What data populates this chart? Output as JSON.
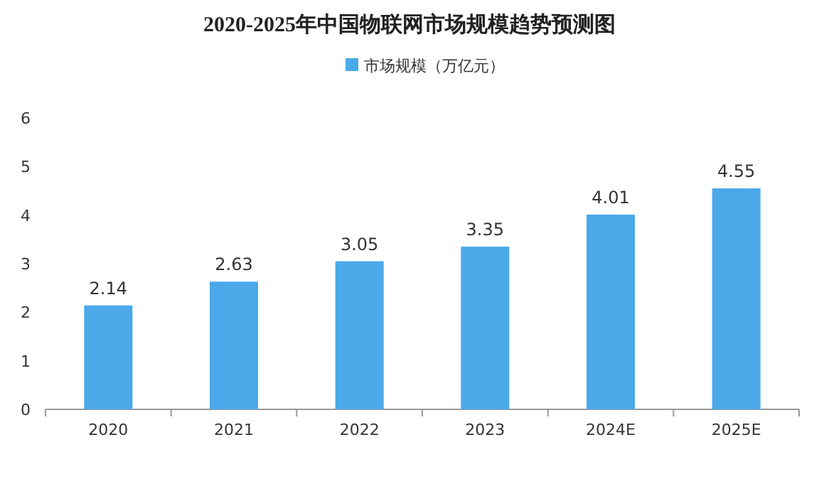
{
  "chart_data": {
    "type": "bar",
    "title": "2020-2025年中国物联网市场规模趋势预测图",
    "categories": [
      "2020",
      "2021",
      "2022",
      "2023",
      "2024E",
      "2025E"
    ],
    "series": [
      {
        "name": "市场规模（万亿元）",
        "color": "#4ba9ea",
        "values": [
          2.14,
          2.63,
          3.05,
          3.35,
          4.01,
          4.55
        ]
      }
    ],
    "ylim": [
      0,
      6
    ],
    "yticks": [
      0,
      1,
      2,
      3,
      4,
      5,
      6
    ],
    "data_labels": true,
    "legend": "top"
  }
}
